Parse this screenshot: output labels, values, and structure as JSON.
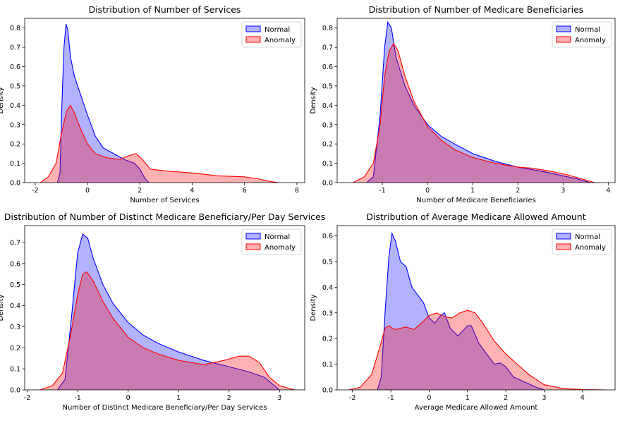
{
  "figure": {
    "colors": {
      "normal": "#0000ff",
      "anomaly": "#ff0000"
    }
  },
  "chart_data": [
    {
      "type": "area",
      "title": "Distribution of Number of Services",
      "xlabel": "Number of Services",
      "ylabel": "Density",
      "xlim": [
        -2.4,
        8.3
      ],
      "ylim": [
        0,
        0.85
      ],
      "xticks": [
        -2,
        0,
        2,
        4,
        6,
        8
      ],
      "yticks": [
        0.0,
        0.1,
        0.2,
        0.3,
        0.4,
        0.5,
        0.6,
        0.7,
        0.8
      ],
      "legend": "upper right",
      "grid": false,
      "series": [
        {
          "name": "Normal",
          "color": "#0000ff",
          "points": [
            [
              -1.15,
              0
            ],
            [
              -1.05,
              0.05
            ],
            [
              -0.98,
              0.4
            ],
            [
              -0.9,
              0.7
            ],
            [
              -0.82,
              0.82
            ],
            [
              -0.75,
              0.79
            ],
            [
              -0.65,
              0.65
            ],
            [
              -0.5,
              0.55
            ],
            [
              -0.3,
              0.47
            ],
            [
              0,
              0.35
            ],
            [
              0.3,
              0.24
            ],
            [
              0.6,
              0.18
            ],
            [
              1.0,
              0.15
            ],
            [
              1.4,
              0.12
            ],
            [
              1.8,
              0.1
            ],
            [
              2.0,
              0.07
            ],
            [
              2.2,
              0.02
            ],
            [
              2.35,
              0
            ]
          ]
        },
        {
          "name": "Anomaly",
          "color": "#ff0000",
          "points": [
            [
              -1.8,
              0
            ],
            [
              -1.5,
              0.03
            ],
            [
              -1.2,
              0.1
            ],
            [
              -1.0,
              0.25
            ],
            [
              -0.8,
              0.37
            ],
            [
              -0.65,
              0.4
            ],
            [
              -0.5,
              0.36
            ],
            [
              -0.3,
              0.29
            ],
            [
              0,
              0.2
            ],
            [
              0.3,
              0.15
            ],
            [
              0.7,
              0.13
            ],
            [
              1.2,
              0.12
            ],
            [
              1.6,
              0.14
            ],
            [
              1.85,
              0.15
            ],
            [
              2.1,
              0.12
            ],
            [
              2.4,
              0.07
            ],
            [
              3.0,
              0.06
            ],
            [
              4.0,
              0.05
            ],
            [
              5.0,
              0.035
            ],
            [
              6.0,
              0.03
            ],
            [
              6.5,
              0.02
            ],
            [
              7.0,
              0.005
            ],
            [
              7.3,
              0
            ]
          ]
        }
      ]
    },
    {
      "type": "area",
      "title": "Distribution of Number of Medicare Beneficiaries",
      "xlabel": "Number of Medicare Beneficiaries",
      "ylabel": "Density",
      "xlim": [
        -2.0,
        4.15
      ],
      "ylim": [
        0,
        0.85
      ],
      "xticks": [
        -1,
        0,
        1,
        2,
        3,
        4
      ],
      "yticks": [
        0.0,
        0.1,
        0.2,
        0.3,
        0.4,
        0.5,
        0.6,
        0.7,
        0.8
      ],
      "legend": "upper right",
      "grid": false,
      "series": [
        {
          "name": "Normal",
          "color": "#0000ff",
          "points": [
            [
              -1.35,
              0
            ],
            [
              -1.2,
              0.03
            ],
            [
              -1.05,
              0.35
            ],
            [
              -0.95,
              0.7
            ],
            [
              -0.88,
              0.83
            ],
            [
              -0.8,
              0.8
            ],
            [
              -0.7,
              0.65
            ],
            [
              -0.5,
              0.5
            ],
            [
              -0.3,
              0.4
            ],
            [
              0,
              0.3
            ],
            [
              0.3,
              0.24
            ],
            [
              0.6,
              0.2
            ],
            [
              1.0,
              0.15
            ],
            [
              1.5,
              0.11
            ],
            [
              2.0,
              0.08
            ],
            [
              2.5,
              0.06
            ],
            [
              3.0,
              0.035
            ],
            [
              3.3,
              0.02
            ],
            [
              3.6,
              0
            ]
          ]
        },
        {
          "name": "Anomaly",
          "color": "#ff0000",
          "points": [
            [
              -1.65,
              0
            ],
            [
              -1.4,
              0.03
            ],
            [
              -1.2,
              0.1
            ],
            [
              -1.05,
              0.3
            ],
            [
              -0.95,
              0.55
            ],
            [
              -0.85,
              0.68
            ],
            [
              -0.75,
              0.72
            ],
            [
              -0.65,
              0.68
            ],
            [
              -0.5,
              0.55
            ],
            [
              -0.3,
              0.42
            ],
            [
              0,
              0.29
            ],
            [
              0.3,
              0.22
            ],
            [
              0.6,
              0.17
            ],
            [
              1.0,
              0.13
            ],
            [
              1.5,
              0.1
            ],
            [
              2.0,
              0.08
            ],
            [
              2.3,
              0.075
            ],
            [
              2.7,
              0.06
            ],
            [
              3.1,
              0.04
            ],
            [
              3.4,
              0.02
            ],
            [
              3.7,
              0
            ]
          ]
        }
      ]
    },
    {
      "type": "area",
      "title": "Distribution of Number of Distinct Medicare Beneficiary/Per Day Services",
      "xlabel": "Number of Distinct Medicare Beneficiary/Per Day Services",
      "ylabel": "Density",
      "xlim": [
        -2.05,
        3.5
      ],
      "ylim": [
        0,
        0.78
      ],
      "xticks": [
        -2,
        -1,
        0,
        1,
        2,
        3
      ],
      "yticks": [
        0.0,
        0.1,
        0.2,
        0.3,
        0.4,
        0.5,
        0.6,
        0.7
      ],
      "legend": "upper right",
      "grid": false,
      "series": [
        {
          "name": "Normal",
          "color": "#0000ff",
          "points": [
            [
              -1.4,
              0
            ],
            [
              -1.25,
              0.05
            ],
            [
              -1.12,
              0.35
            ],
            [
              -1.0,
              0.65
            ],
            [
              -0.9,
              0.74
            ],
            [
              -0.8,
              0.72
            ],
            [
              -0.7,
              0.63
            ],
            [
              -0.5,
              0.5
            ],
            [
              -0.3,
              0.41
            ],
            [
              0,
              0.32
            ],
            [
              0.3,
              0.26
            ],
            [
              0.6,
              0.22
            ],
            [
              1.0,
              0.18
            ],
            [
              1.5,
              0.14
            ],
            [
              2.0,
              0.11
            ],
            [
              2.4,
              0.085
            ],
            [
              2.7,
              0.06
            ],
            [
              2.9,
              0.02
            ],
            [
              3.0,
              0
            ]
          ]
        },
        {
          "name": "Anomaly",
          "color": "#ff0000",
          "points": [
            [
              -1.75,
              0
            ],
            [
              -1.5,
              0.02
            ],
            [
              -1.3,
              0.08
            ],
            [
              -1.15,
              0.25
            ],
            [
              -1.0,
              0.45
            ],
            [
              -0.9,
              0.55
            ],
            [
              -0.82,
              0.56
            ],
            [
              -0.7,
              0.52
            ],
            [
              -0.5,
              0.42
            ],
            [
              -0.3,
              0.34
            ],
            [
              0,
              0.25
            ],
            [
              0.3,
              0.2
            ],
            [
              0.6,
              0.17
            ],
            [
              1.0,
              0.14
            ],
            [
              1.5,
              0.12
            ],
            [
              1.9,
              0.14
            ],
            [
              2.2,
              0.16
            ],
            [
              2.4,
              0.16
            ],
            [
              2.6,
              0.13
            ],
            [
              2.8,
              0.06
            ],
            [
              3.0,
              0.02
            ],
            [
              3.3,
              0
            ]
          ]
        }
      ]
    },
    {
      "type": "area",
      "title": "Distribution of Average Medicare Allowed Amount",
      "xlabel": "Average Medicare Allowed Amount",
      "ylabel": "Density",
      "xlim": [
        -2.4,
        4.85
      ],
      "ylim": [
        0,
        0.64
      ],
      "xticks": [
        -2,
        -1,
        0,
        1,
        2,
        3,
        4
      ],
      "yticks": [
        0.0,
        0.1,
        0.2,
        0.3,
        0.4,
        0.5,
        0.6
      ],
      "legend": "upper right",
      "grid": false,
      "series": [
        {
          "name": "Normal",
          "color": "#0000ff",
          "points": [
            [
              -1.35,
              0
            ],
            [
              -1.25,
              0.05
            ],
            [
              -1.15,
              0.3
            ],
            [
              -1.05,
              0.52
            ],
            [
              -0.97,
              0.61
            ],
            [
              -0.88,
              0.58
            ],
            [
              -0.75,
              0.5
            ],
            [
              -0.6,
              0.48
            ],
            [
              -0.45,
              0.4
            ],
            [
              -0.3,
              0.37
            ],
            [
              -0.15,
              0.34
            ],
            [
              0,
              0.28
            ],
            [
              0.15,
              0.26
            ],
            [
              0.3,
              0.29
            ],
            [
              0.4,
              0.3
            ],
            [
              0.55,
              0.24
            ],
            [
              0.75,
              0.21
            ],
            [
              1.0,
              0.25
            ],
            [
              1.1,
              0.25
            ],
            [
              1.3,
              0.18
            ],
            [
              1.5,
              0.14
            ],
            [
              1.7,
              0.1
            ],
            [
              1.85,
              0.105
            ],
            [
              2.0,
              0.09
            ],
            [
              2.2,
              0.05
            ],
            [
              2.5,
              0.03
            ],
            [
              2.8,
              0.01
            ],
            [
              3.0,
              0
            ]
          ]
        },
        {
          "name": "Anomaly",
          "color": "#ff0000",
          "points": [
            [
              -2.1,
              0
            ],
            [
              -1.8,
              0.01
            ],
            [
              -1.5,
              0.06
            ],
            [
              -1.3,
              0.16
            ],
            [
              -1.15,
              0.24
            ],
            [
              -1.05,
              0.25
            ],
            [
              -0.9,
              0.235
            ],
            [
              -0.6,
              0.245
            ],
            [
              -0.4,
              0.235
            ],
            [
              -0.2,
              0.26
            ],
            [
              0,
              0.29
            ],
            [
              0.2,
              0.3
            ],
            [
              0.4,
              0.285
            ],
            [
              0.6,
              0.28
            ],
            [
              0.8,
              0.3
            ],
            [
              1.0,
              0.31
            ],
            [
              1.2,
              0.3
            ],
            [
              1.4,
              0.26
            ],
            [
              1.7,
              0.19
            ],
            [
              2.0,
              0.14
            ],
            [
              2.3,
              0.1
            ],
            [
              2.6,
              0.06
            ],
            [
              3.0,
              0.02
            ],
            [
              3.5,
              0.005
            ],
            [
              4.0,
              0.001
            ],
            [
              4.6,
              0
            ]
          ]
        }
      ]
    }
  ]
}
